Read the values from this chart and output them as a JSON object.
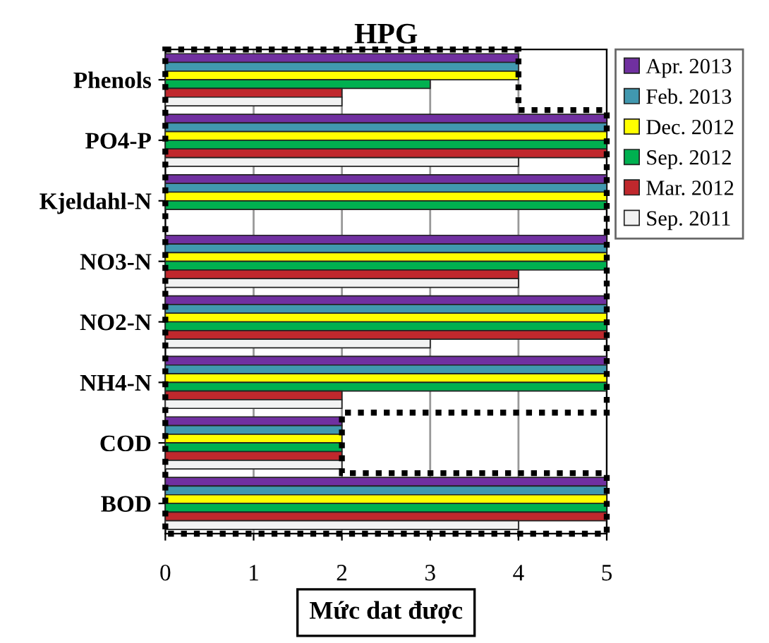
{
  "chart_data": {
    "type": "bar",
    "orientation": "horizontal",
    "title": "HPG",
    "xlabel": "Mức dat được",
    "categories": [
      "Phenols",
      "PO4-P",
      "Kjeldahl-N",
      "NO3-N",
      "NO2-N",
      "NH4-N",
      "COD",
      "BOD"
    ],
    "series": [
      {
        "name": "Apr. 2013",
        "color": "#7030a0",
        "values": [
          4,
          5,
          5,
          5,
          5,
          5,
          2,
          5
        ]
      },
      {
        "name": "Feb. 2013",
        "color": "#4198af",
        "values": [
          4,
          5,
          5,
          5,
          5,
          5,
          2,
          5
        ]
      },
      {
        "name": "Dec. 2012",
        "color": "#ffff00",
        "values": [
          4,
          5,
          5,
          5,
          5,
          5,
          2,
          5
        ]
      },
      {
        "name": "Sep. 2012",
        "color": "#00b050",
        "values": [
          3,
          5,
          5,
          5,
          5,
          5,
          2,
          5
        ]
      },
      {
        "name": "Mar. 2012",
        "color": "#c0282d",
        "values": [
          2,
          5,
          null,
          4,
          5,
          2,
          2,
          5
        ]
      },
      {
        "name": "Sep. 2011",
        "color": "#f2f2f2",
        "values": [
          2,
          4,
          null,
          4,
          3,
          2,
          2,
          4
        ]
      }
    ],
    "xlim": [
      0,
      5
    ],
    "xticks": [
      0,
      1,
      2,
      3,
      4,
      5
    ],
    "grid": "x",
    "legend": "top right"
  }
}
